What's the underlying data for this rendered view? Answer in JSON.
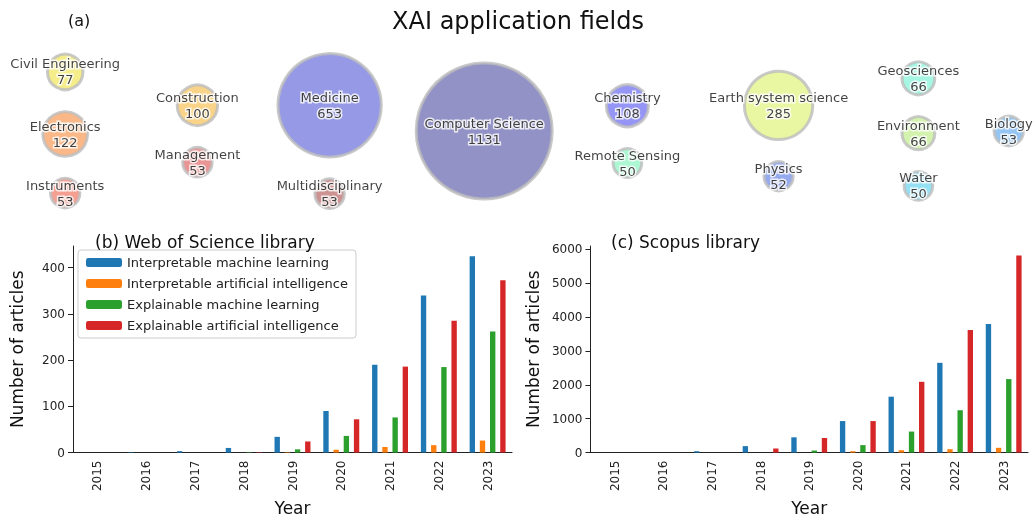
{
  "chart_data": [
    {
      "type": "other",
      "title": "XAI application fields",
      "annotations": [
        "(a)"
      ],
      "categories": [
        "Civil Engineering",
        "Electronics",
        "Instruments",
        "Construction",
        "Management",
        "Medicine",
        "Multidisciplinary",
        "Computer Science",
        "Chemistry",
        "Remote Sensing",
        "Earth system science",
        "Physics",
        "Geosciences",
        "Environment",
        "Water",
        "Biology"
      ],
      "values": [
        77,
        122,
        53,
        100,
        53,
        653,
        53,
        1131,
        108,
        50,
        285,
        52,
        66,
        66,
        50,
        53
      ],
      "data_labels": true,
      "colors": [
        "#f2e86d",
        "#f9a66c",
        "#f08878",
        "#f8c86a",
        "#e57b7b",
        "#7b7fe0",
        "#c07878",
        "#7777b8",
        "#7b7bf2",
        "#9af5c8",
        "#e4f58c",
        "#7b95e8",
        "#8ff5dc",
        "#c8ef9a",
        "#7ad8f0",
        "#7bb8f0"
      ]
    },
    {
      "type": "bar",
      "title": "(b) Web of Science library",
      "xlabel": "Year",
      "ylabel": "Number of articles",
      "categories": [
        "2015",
        "2016",
        "2017",
        "2018",
        "2019",
        "2020",
        "2021",
        "2022",
        "2023"
      ],
      "series": [
        {
          "name": "Interpretable machine learning",
          "color": "#1f77b4",
          "values": [
            0,
            1,
            3,
            10,
            34,
            90,
            190,
            340,
            425
          ]
        },
        {
          "name": "Interpretable artificial intelligence",
          "color": "#ff7f0e",
          "values": [
            0,
            0,
            0,
            0,
            1,
            6,
            12,
            16,
            26
          ]
        },
        {
          "name": "Explainable machine learning",
          "color": "#2ca02c",
          "values": [
            0,
            0,
            0,
            1,
            7,
            36,
            76,
            185,
            262
          ]
        },
        {
          "name": "Explainable artificial intelligence",
          "color": "#d62728",
          "values": [
            0,
            0,
            0,
            1,
            24,
            72,
            186,
            285,
            373
          ]
        }
      ],
      "ylim": [
        0,
        447
      ],
      "yticks": [
        0,
        100,
        200,
        300,
        400
      ],
      "grid": false,
      "legend": "top left"
    },
    {
      "type": "bar",
      "title": "(c) Scopus library",
      "xlabel": "Year",
      "ylabel": "Number of articles",
      "categories": [
        "2015",
        "2016",
        "2017",
        "2018",
        "2019",
        "2020",
        "2021",
        "2022",
        "2023"
      ],
      "series": [
        {
          "color": "#1f77b4",
          "values": [
            0,
            0,
            40,
            190,
            450,
            930,
            1650,
            2650,
            3800
          ]
        },
        {
          "color": "#ff7f0e",
          "values": [
            0,
            0,
            0,
            0,
            0,
            40,
            70,
            100,
            140
          ]
        },
        {
          "color": "#2ca02c",
          "values": [
            0,
            0,
            0,
            0,
            60,
            220,
            620,
            1250,
            2170
          ]
        },
        {
          "color": "#d62728",
          "values": [
            0,
            0,
            0,
            120,
            430,
            930,
            2090,
            3620,
            5820
          ]
        }
      ],
      "ylim": [
        0,
        6100
      ],
      "yticks": [
        0,
        1000,
        2000,
        3000,
        4000,
        5000,
        6000
      ],
      "grid": false
    }
  ]
}
